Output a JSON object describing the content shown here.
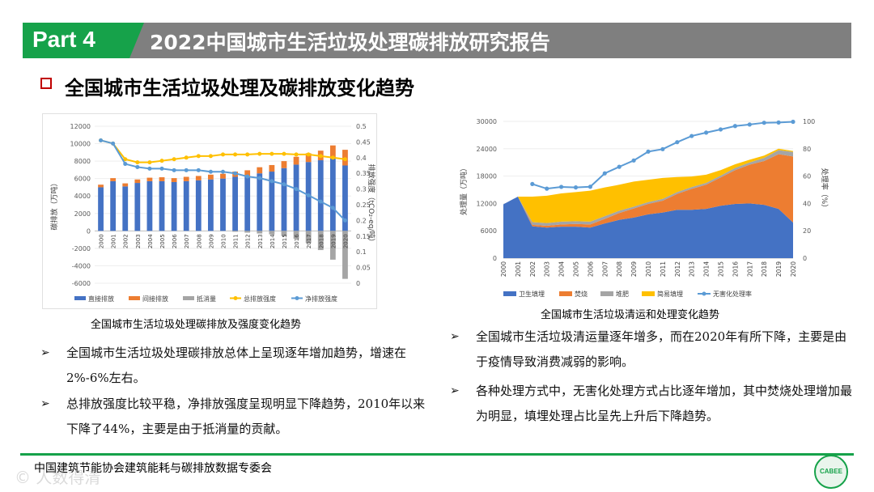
{
  "header": {
    "part_label": "Part 4",
    "report_title": "2022中国城市生活垃圾处理碳排放研究报告",
    "section_title": "全国城市生活垃圾处理及碳排放变化趋势"
  },
  "colors": {
    "brand_green": "#16a24a",
    "banner_gray": "#7f7f7f",
    "direct": "#4472c4",
    "indirect": "#ed7d31",
    "offset": "#a5a5a5",
    "total_intensity": "#ffc000",
    "net_intensity": "#5b9bd5",
    "landfill_sanitary": "#4472c4",
    "incineration": "#ed7d31",
    "compost": "#a5a5a5",
    "simple_landfill": "#ffc000",
    "harmless_rate": "#5b9bd5"
  },
  "chart_data": [
    {
      "type": "bar",
      "title": "全国城市生活垃圾处理碳排放及强度变化趋势",
      "ylabel": "碳排放（万吨）",
      "y2label": "排放强度（tCO₂-eq/吨）",
      "ylim": [
        -6000,
        12000
      ],
      "y_ticks": [
        -6000,
        -4000,
        -2000,
        0,
        2000,
        4000,
        6000,
        8000,
        10000,
        12000
      ],
      "y2lim": [
        0,
        0.5
      ],
      "y2_ticks": [
        "0",
        "0.05",
        "0.1",
        "0.15",
        "0.2",
        "0.25",
        "0.3",
        "0.35",
        "0.4",
        "0.45",
        "0.5"
      ],
      "categories": [
        "2000",
        "2001",
        "2002",
        "2003",
        "2004",
        "2005",
        "2006",
        "2007",
        "2008",
        "2009",
        "2010",
        "2011",
        "2012",
        "2013",
        "2014",
        "2015",
        "2016",
        "2017",
        "2018",
        "2019",
        "2020"
      ],
      "series": [
        {
          "name": "直接排放",
          "kind": "bar",
          "values": [
            5000,
            5700,
            5100,
            5500,
            5700,
            5700,
            5600,
            5700,
            5800,
            5900,
            6000,
            6200,
            6300,
            6600,
            6800,
            7200,
            7600,
            7900,
            8100,
            8300,
            7500
          ]
        },
        {
          "name": "间接排放",
          "kind": "bar",
          "values": [
            300,
            350,
            350,
            400,
            400,
            450,
            450,
            500,
            500,
            550,
            550,
            600,
            650,
            700,
            750,
            800,
            900,
            1000,
            1100,
            1500,
            1800
          ]
        },
        {
          "name": "抵消量",
          "kind": "bar",
          "values": [
            0,
            0,
            0,
            0,
            0,
            0,
            0,
            0,
            0,
            0,
            0,
            -100,
            -200,
            -300,
            -400,
            -600,
            -900,
            -1400,
            -2200,
            -3300,
            -5500
          ]
        },
        {
          "name": "总排放强度",
          "kind": "line",
          "axis": "right",
          "values": [
            0.455,
            0.445,
            0.395,
            0.385,
            0.385,
            0.39,
            0.395,
            0.4,
            0.405,
            0.405,
            0.41,
            0.41,
            0.41,
            0.412,
            0.412,
            0.412,
            0.41,
            0.41,
            0.405,
            0.4,
            0.395
          ]
        },
        {
          "name": "净排放强度",
          "kind": "line",
          "axis": "right",
          "values": [
            0.455,
            0.445,
            0.38,
            0.37,
            0.365,
            0.365,
            0.36,
            0.36,
            0.36,
            0.355,
            0.355,
            0.35,
            0.34,
            0.335,
            0.325,
            0.315,
            0.3,
            0.28,
            0.26,
            0.24,
            0.2
          ]
        }
      ]
    },
    {
      "type": "area",
      "title": "全国城市生活垃圾清运和处理变化趋势",
      "ylabel": "处理量（万吨）",
      "y2label": "处理率（%）",
      "ylim": [
        0,
        30000
      ],
      "y_ticks": [
        0,
        6000,
        12000,
        18000,
        24000,
        30000
      ],
      "y2lim": [
        0,
        100
      ],
      "y2_ticks": [
        0,
        20,
        40,
        60,
        80,
        100
      ],
      "categories": [
        "2000",
        "2001",
        "2002",
        "2003",
        "2004",
        "2005",
        "2006",
        "2007",
        "2008",
        "2009",
        "2010",
        "2011",
        "2012",
        "2013",
        "2014",
        "2015",
        "2016",
        "2017",
        "2018",
        "2019",
        "2020"
      ],
      "series": [
        {
          "name": "卫生填埋",
          "kind": "area",
          "values": [
            11800,
            13500,
            7000,
            6700,
            6900,
            6900,
            6700,
            7600,
            8400,
            8900,
            9600,
            10000,
            10600,
            10600,
            10800,
            11500,
            11900,
            12000,
            11700,
            10800,
            7800
          ]
        },
        {
          "name": "焚烧",
          "kind": "area",
          "values": [
            0,
            0,
            300,
            400,
            500,
            600,
            700,
            1000,
            1500,
            2000,
            2300,
            2600,
            3500,
            4600,
            5300,
            6200,
            7400,
            8500,
            9600,
            12000,
            14500
          ]
        },
        {
          "name": "堆肥",
          "kind": "area",
          "values": [
            0,
            0,
            600,
            600,
            600,
            600,
            600,
            600,
            500,
            400,
            400,
            400,
            400,
            400,
            400,
            400,
            500,
            500,
            700,
            900,
            1000
          ]
        },
        {
          "name": "简易填埋",
          "kind": "area",
          "values": [
            0,
            0,
            5600,
            6000,
            6200,
            6400,
            6800,
            6300,
            5700,
            5500,
            4900,
            4600,
            3300,
            2300,
            1800,
            1200,
            800,
            600,
            500,
            300,
            200
          ]
        },
        {
          "name": "无害化处理率",
          "kind": "line",
          "axis": "right",
          "values": [
            null,
            null,
            54.2,
            50.8,
            52.1,
            51.7,
            52.2,
            62,
            66.8,
            71.4,
            77.9,
            79.7,
            84.8,
            89.3,
            91.8,
            94.1,
            96.6,
            97.7,
            99,
            99.2,
            99.7
          ]
        }
      ]
    }
  ],
  "bullets_left": [
    {
      "marker": "➢",
      "text": "全国城市生活垃圾处理碳排放总体上呈现逐年增加趋势，增速在2%-6%左右。"
    },
    {
      "marker": "➢",
      "text": "总排放强度比较平稳，净排放强度呈现明显下降趋势，2010年以来下降了44%，主要是由于抵消量的贡献。"
    }
  ],
  "bullets_right": [
    {
      "marker": "➢",
      "text": "全国城市生活垃圾清运量逐年增多，而在2020年有所下降，主要是由于疫情导致消费减弱的影响。"
    },
    {
      "marker": "➢",
      "text": "各种处理方式中，无害化处理方式占比逐年增加，其中焚烧处理增加最为明显，填埋处理占比呈先上升后下降趋势。"
    }
  ],
  "footer": {
    "org": "中国建筑节能协会建筑能耗与碳排放数据专委会",
    "logo_text": "CABEE",
    "watermark": "© 人数得清"
  }
}
